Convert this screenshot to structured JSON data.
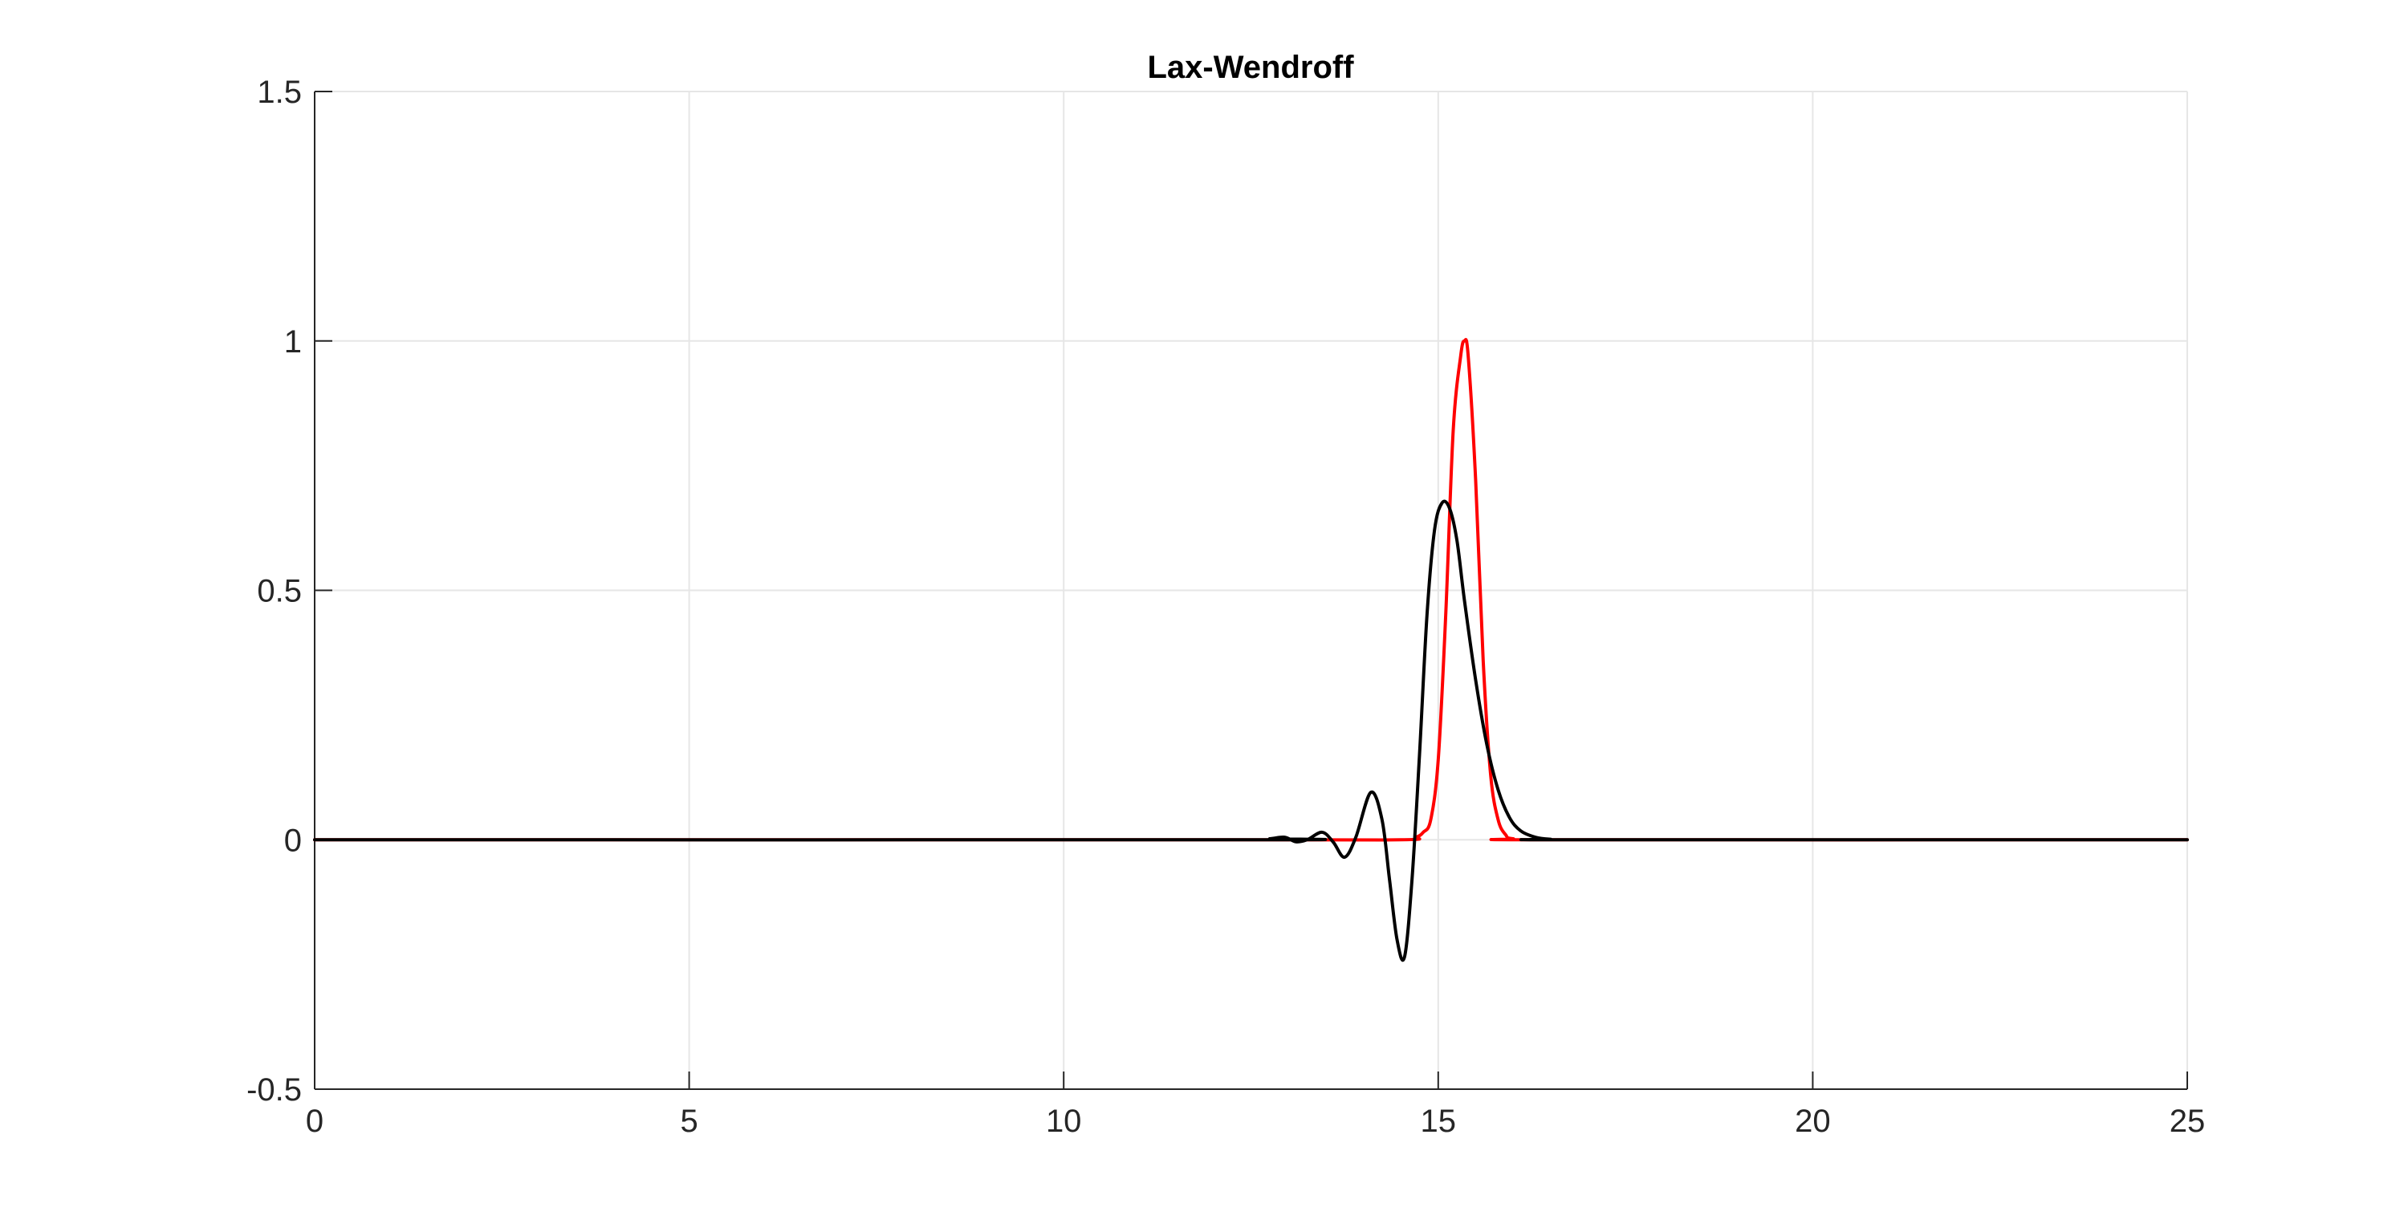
{
  "chart_data": {
    "type": "line",
    "title": "Lax-Wendroff",
    "xlabel": "",
    "ylabel": "",
    "xlim": [
      0,
      25
    ],
    "ylim": [
      -0.5,
      1.5
    ],
    "x_ticks": [
      0,
      5,
      10,
      15,
      20,
      25
    ],
    "y_ticks": [
      -0.5,
      0,
      0.5,
      1,
      1.5
    ],
    "x_tick_labels": [
      "0",
      "5",
      "10",
      "15",
      "20",
      "25"
    ],
    "y_tick_labels": [
      "-0.5",
      "0",
      "0.5",
      "1",
      "1.5"
    ],
    "grid": true,
    "legend": "none",
    "series": [
      {
        "color": "#ff0000",
        "x": [
          0,
          12.0,
          14.5,
          14.7,
          14.8,
          14.9,
          15.0,
          15.1,
          15.2,
          15.3,
          15.35,
          15.4,
          15.5,
          15.6,
          15.7,
          15.8,
          15.9,
          16.0,
          16.5,
          25
        ],
        "y": [
          0,
          0,
          0,
          0.005,
          0.015,
          0.04,
          0.16,
          0.45,
          0.82,
          0.97,
          1.0,
          0.97,
          0.72,
          0.36,
          0.13,
          0.04,
          0.01,
          0.002,
          0,
          0
        ]
      },
      {
        "color": "#000000",
        "x": [
          0,
          12.5,
          12.75,
          12.95,
          13.1,
          13.25,
          13.45,
          13.6,
          13.75,
          13.9,
          14.1,
          14.25,
          14.35,
          14.45,
          14.55,
          14.65,
          14.75,
          14.85,
          14.95,
          15.05,
          15.15,
          15.25,
          15.35,
          15.5,
          15.65,
          15.8,
          15.95,
          16.1,
          16.3,
          16.5,
          16.8,
          25
        ],
        "y": [
          0,
          0,
          0.002,
          0.005,
          -0.004,
          0.0,
          0.015,
          -0.005,
          -0.035,
          0.005,
          0.095,
          0.04,
          -0.08,
          -0.2,
          -0.235,
          -0.08,
          0.17,
          0.45,
          0.62,
          0.675,
          0.665,
          0.6,
          0.48,
          0.32,
          0.19,
          0.1,
          0.045,
          0.018,
          0.005,
          0.001,
          0,
          0
        ]
      }
    ]
  }
}
